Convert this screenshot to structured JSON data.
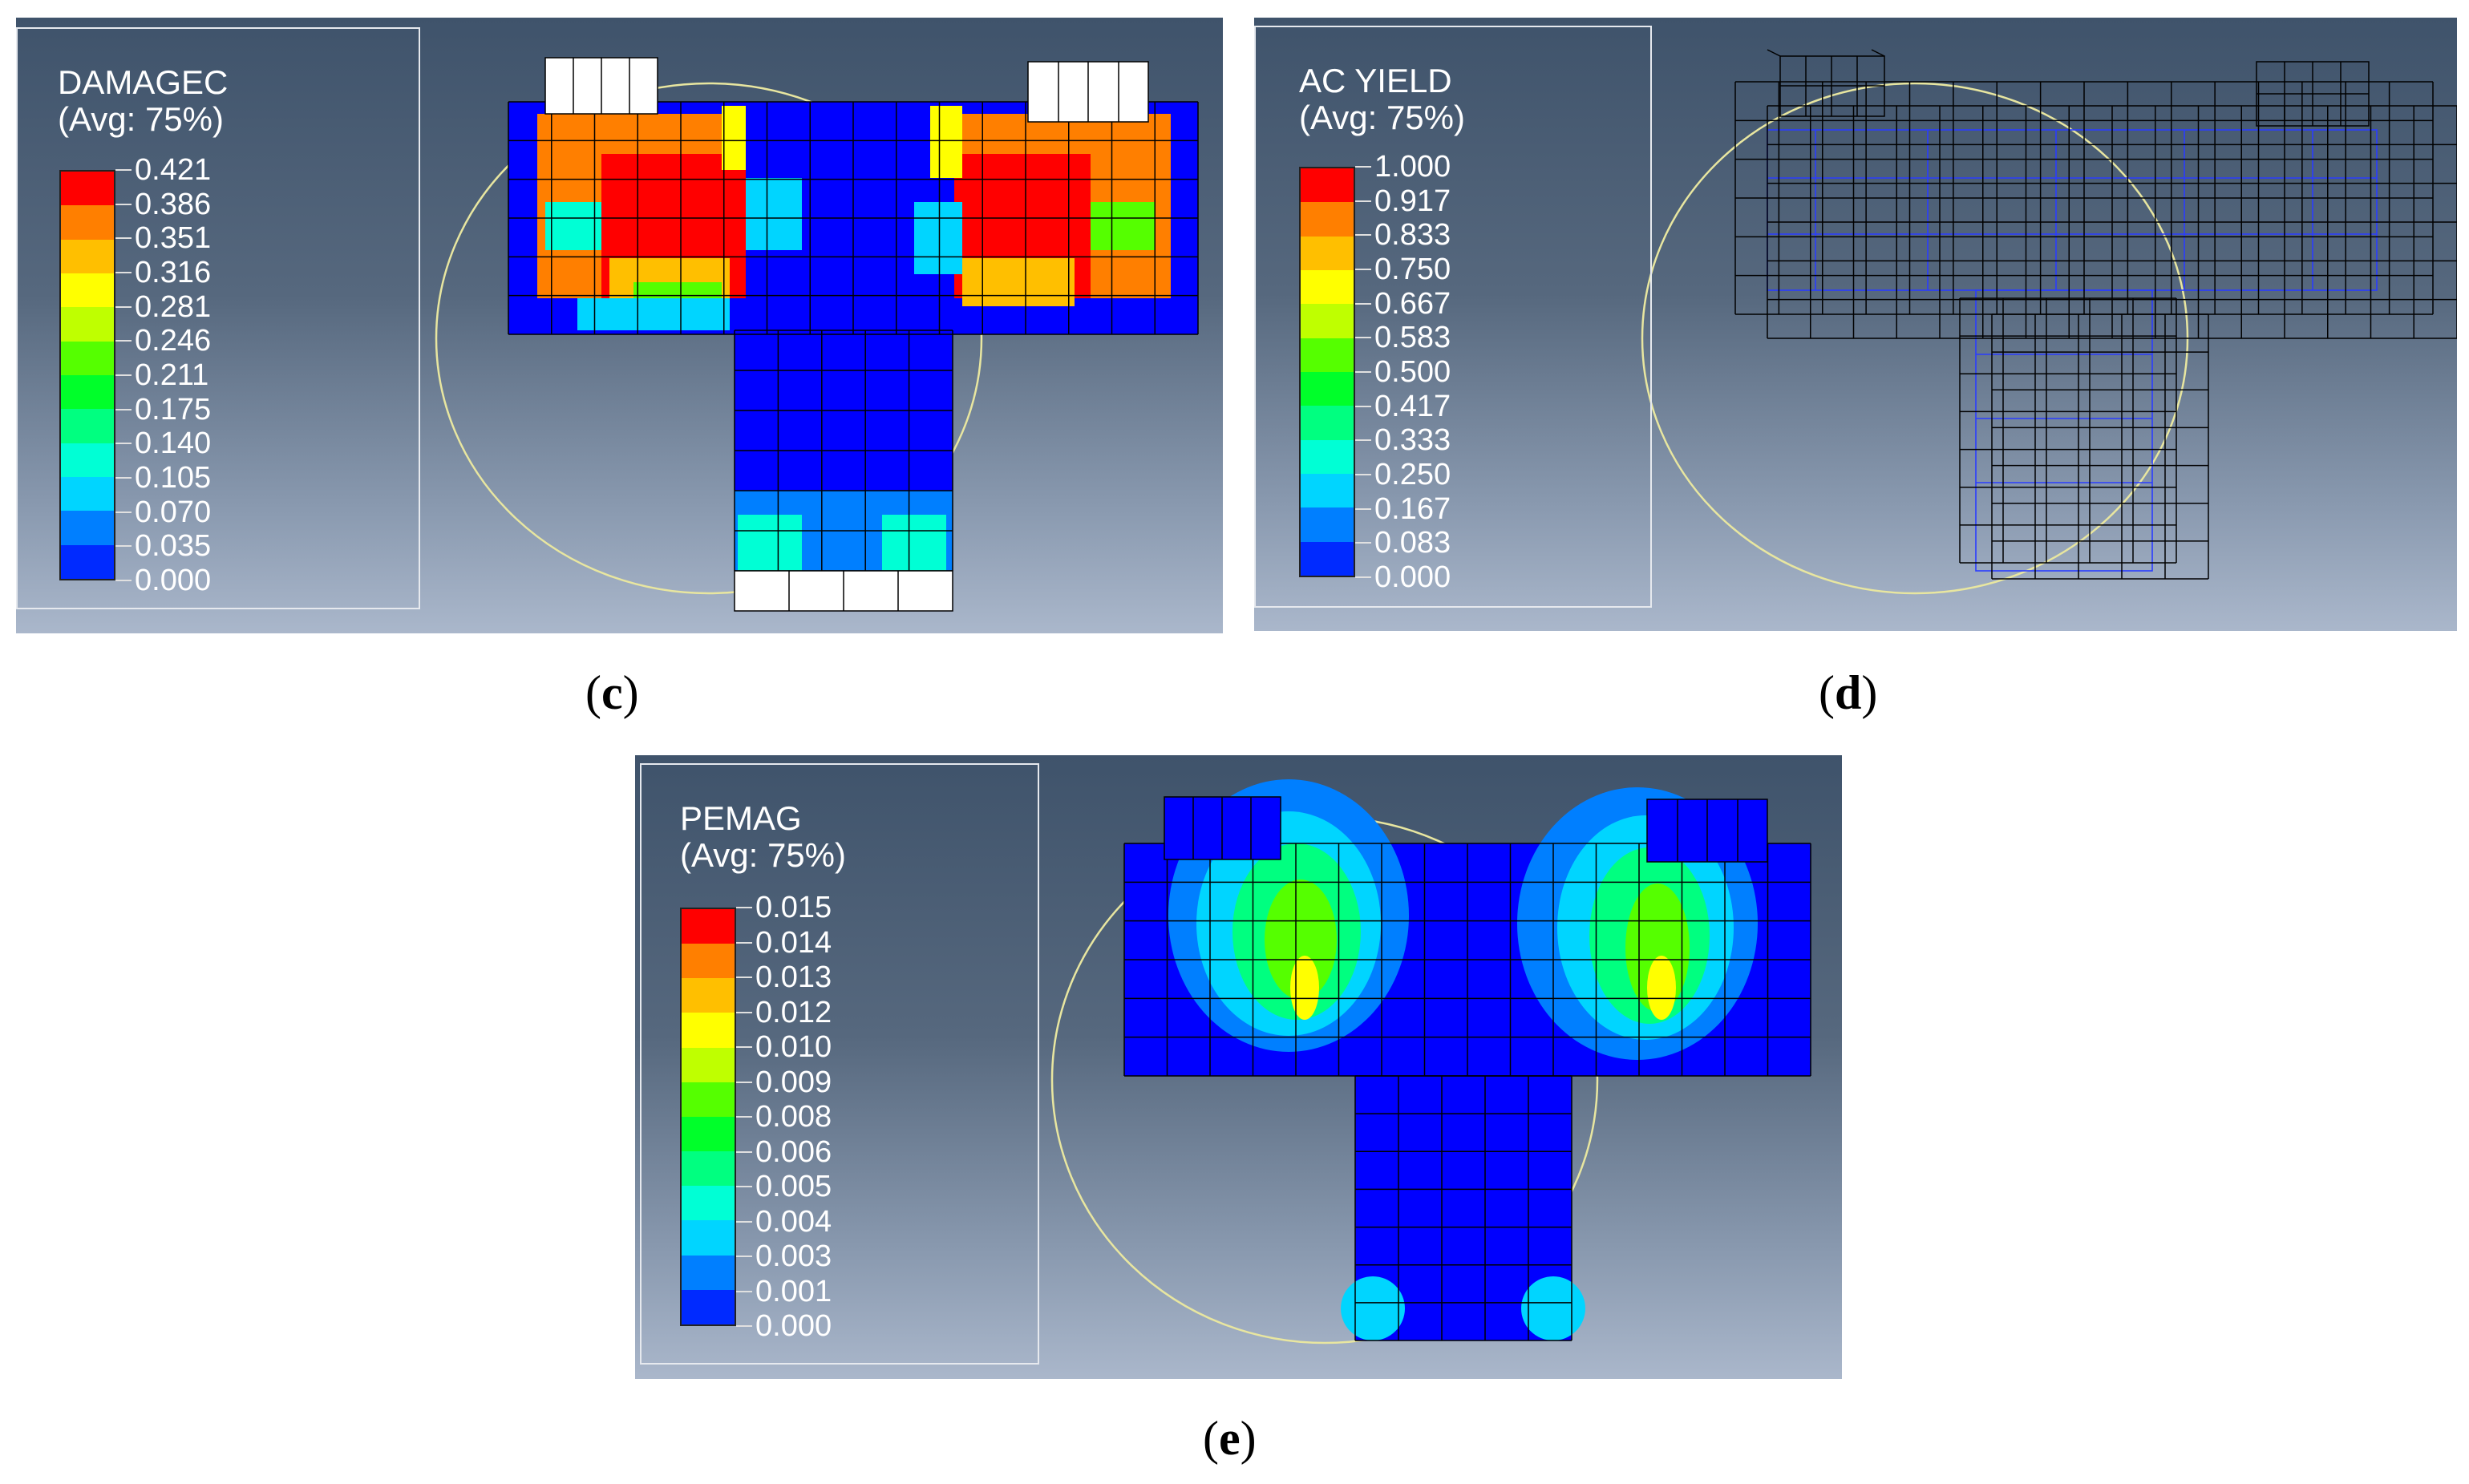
{
  "panels": [
    {
      "id": "c",
      "caption_letter": "c",
      "variable": "DAMAGEC",
      "avg": "(Avg: 75%)",
      "legend_values": [
        "0.421",
        "0.386",
        "0.351",
        "0.316",
        "0.281",
        "0.246",
        "0.211",
        "0.175",
        "0.140",
        "0.105",
        "0.070",
        "0.035",
        "0.000"
      ]
    },
    {
      "id": "d",
      "caption_letter": "d",
      "variable": "AC YIELD",
      "avg": "(Avg: 75%)",
      "legend_values": [
        "1.000",
        "0.917",
        "0.833",
        "0.750",
        "0.667",
        "0.583",
        "0.500",
        "0.417",
        "0.333",
        "0.250",
        "0.167",
        "0.083",
        "0.000"
      ]
    },
    {
      "id": "e",
      "caption_letter": "e",
      "variable": "PEMAG",
      "avg": "(Avg: 75%)",
      "legend_values": [
        "0.015",
        "0.014",
        "0.013",
        "0.012",
        "0.010",
        "0.009",
        "0.008",
        "0.006",
        "0.005",
        "0.004",
        "0.003",
        "0.001",
        "0.000"
      ]
    }
  ],
  "colors": {
    "scale": [
      "#ff0000",
      "#ff7f00",
      "#ffbf00",
      "#ffff00",
      "#bfff00",
      "#55ff00",
      "#00ff2a",
      "#00ff80",
      "#00ffd5",
      "#00d5ff",
      "#007fff",
      "#002aff",
      "#0000ff"
    ],
    "background_top": "#3f536b",
    "background_bottom": "#aab7cb",
    "wireframe": "#000000",
    "rebar": "#2a3cff",
    "circle": "#e8e6a0"
  }
}
